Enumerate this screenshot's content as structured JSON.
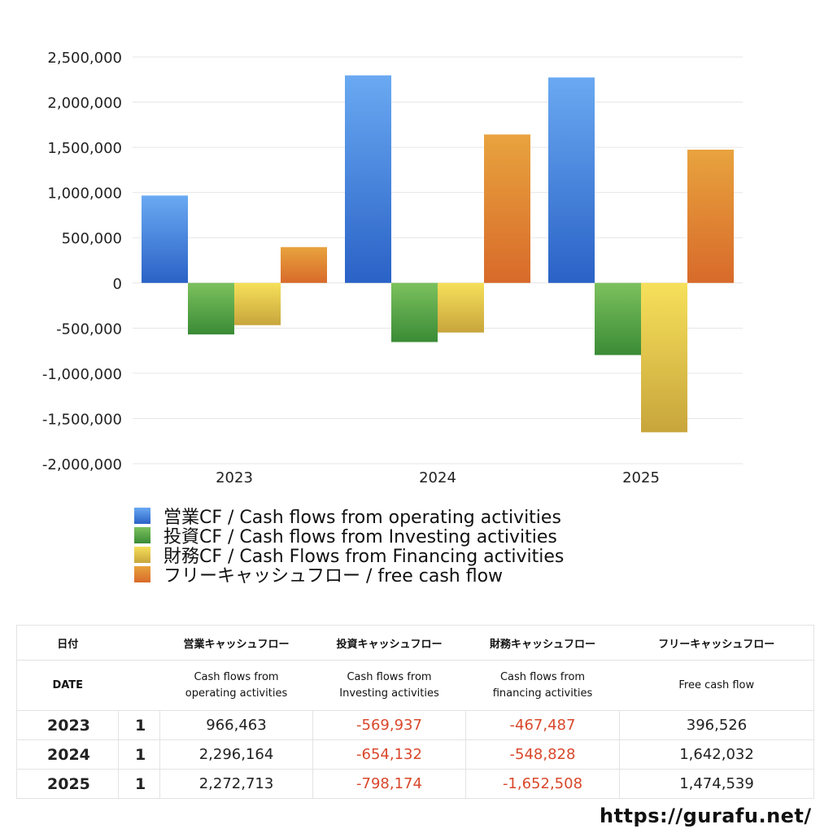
{
  "chart_data": {
    "type": "bar",
    "categories": [
      "2023",
      "2024",
      "2025"
    ],
    "ylim": [
      -2000000,
      2500000
    ],
    "yticks": [
      "2,500,000",
      "2,000,000",
      "1,500,000",
      "1,000,000",
      "500,000",
      "0",
      "-500,000",
      "-1,000,000",
      "-1,500,000",
      "-2,000,000"
    ],
    "grid": true,
    "legend_position": "bottom",
    "series": [
      {
        "name": "営業CF / Cash flows from operating activities",
        "values": [
          966463,
          2296164,
          2272713
        ],
        "color_top": "#6aa9f2",
        "color_bottom": "#2a62c6"
      },
      {
        "name": "投資CF / Cash flows from Investing activities",
        "values": [
          -569937,
          -654132,
          -798174
        ],
        "color_top": "#7cc15e",
        "color_bottom": "#3a8b36"
      },
      {
        "name": "財務CF / Cash Flows from Financing activities",
        "values": [
          -467487,
          -548828,
          -1652508
        ],
        "color_top": "#f6e05a",
        "color_bottom": "#c8a53c"
      },
      {
        "name": "フリーキャッシュフロー / free cash flow",
        "values": [
          396526,
          1642032,
          1474539
        ],
        "color_top": "#e8a33e",
        "color_bottom": "#d86a2a"
      }
    ]
  },
  "table": {
    "header1": [
      "日付",
      "",
      "営業キャッシュフロー",
      "投資キャッシュフロー",
      "財務キャッシュフロー",
      "フリーキャッシュフロー"
    ],
    "header2": [
      "DATE",
      "",
      "Cash flows from\noperating activities",
      "Cash flows from\nInvesting activities",
      "Cash flows from\nfinancing activities",
      "Free cash flow"
    ],
    "rows": [
      {
        "year": "2023",
        "idx": "1",
        "op": "966,463",
        "inv": "-569,937",
        "fin": "-467,487",
        "fcf": "396,526"
      },
      {
        "year": "2024",
        "idx": "1",
        "op": "2,296,164",
        "inv": "-654,132",
        "fin": "-548,828",
        "fcf": "1,642,032"
      },
      {
        "year": "2025",
        "idx": "1",
        "op": "2,272,713",
        "inv": "-798,174",
        "fin": "-1,652,508",
        "fcf": "1,474,539"
      }
    ]
  },
  "footer": {
    "url": "https://gurafu.net/"
  }
}
